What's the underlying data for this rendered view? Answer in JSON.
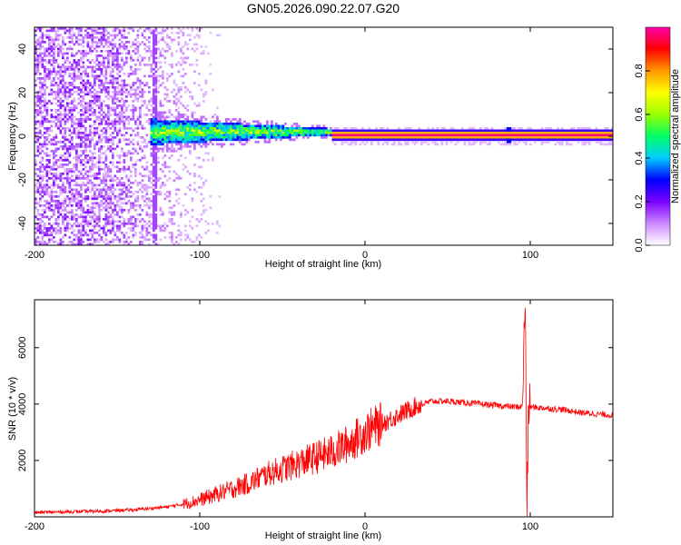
{
  "title": "GN05.2026.090.22.07.G20",
  "chart_data": [
    {
      "type": "heatmap",
      "xlabel": "Height of straight line (km)",
      "ylabel": "Frequency (Hz)",
      "xlim": [
        -200,
        150
      ],
      "ylim": [
        -50,
        50
      ],
      "xticks": [
        -200,
        -100,
        0,
        100
      ],
      "yticks": [
        -40,
        -20,
        0,
        20,
        40
      ],
      "grid": false,
      "colorbar": {
        "label": "Normalized spectral amplitude",
        "range": [
          0,
          1
        ],
        "ticks": [
          "0.0",
          "0.2",
          "0.4",
          "0.6",
          "0.8"
        ],
        "colormap": [
          "#ffffff",
          "#cc88ff",
          "#7a00ff",
          "#0000ff",
          "#00ccff",
          "#00ff66",
          "#99ff00",
          "#ffff00",
          "#ff9900",
          "#ff0000",
          "#ff00aa"
        ]
      },
      "features": [
        {
          "description": "broadband noise",
          "x_range": [
            -200,
            -95
          ],
          "freq_range": [
            -50,
            50
          ],
          "amplitude": 0.12
        },
        {
          "description": "vertical streak",
          "x": -127,
          "freq_range": [
            -50,
            50
          ],
          "amplitude": 0.15
        },
        {
          "description": "signal band",
          "x_range": [
            -130,
            -20
          ],
          "freq_center": 2,
          "freq_halfwidth": [
            6,
            1.5
          ],
          "amplitude_range": [
            0.3,
            0.75
          ]
        },
        {
          "description": "carrier line",
          "x_range": [
            -20,
            150
          ],
          "freq_center": 0.5,
          "freq_halfwidth": 1.3,
          "amplitude": 0.98
        },
        {
          "description": "spike",
          "x": 87,
          "freq_range": [
            -3,
            4
          ],
          "amplitude": 0.3
        }
      ]
    },
    {
      "type": "line",
      "xlabel": "Height of straight line (km)",
      "ylabel": "SNR (10 * v/v)",
      "xlim": [
        -200,
        150
      ],
      "ylim": [
        0,
        7700
      ],
      "xticks": [
        -200,
        -100,
        0,
        100
      ],
      "yticks": [
        2000,
        4000,
        6000
      ],
      "grid": false,
      "series": [
        {
          "color": "#ff0000",
          "x": [
            -200,
            -180,
            -160,
            -140,
            -120,
            -110,
            -100,
            -90,
            -80,
            -70,
            -60,
            -50,
            -40,
            -30,
            -20,
            -10,
            0,
            10,
            20,
            30,
            40,
            50,
            60,
            70,
            80,
            90,
            95,
            97,
            98,
            99,
            100,
            110,
            120,
            130,
            140,
            150
          ],
          "y": [
            150,
            180,
            200,
            250,
            350,
            450,
            600,
            800,
            1000,
            1200,
            1500,
            1700,
            1900,
            2100,
            2300,
            2600,
            3000,
            3300,
            3600,
            3900,
            4100,
            4100,
            4050,
            4000,
            3950,
            3900,
            3900,
            7600,
            400,
            3900,
            3900,
            3850,
            3800,
            3700,
            3650,
            3600
          ]
        }
      ]
    }
  ]
}
